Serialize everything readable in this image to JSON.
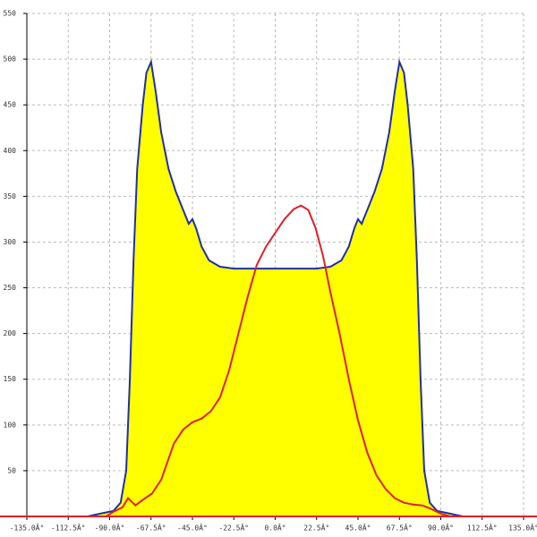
{
  "chart_data": {
    "type": "line",
    "xlim": [
      -135,
      135
    ],
    "ylim": [
      0,
      550
    ],
    "xticks": [
      {
        "value": -135,
        "label": "-135.0Â°"
      },
      {
        "value": -112.5,
        "label": "-112.5Â°"
      },
      {
        "value": -90,
        "label": "-90.0Â°"
      },
      {
        "value": -67.5,
        "label": "-67.5Â°"
      },
      {
        "value": -45,
        "label": "-45.0Â°"
      },
      {
        "value": -22.5,
        "label": "-22.5Â°"
      },
      {
        "value": 0,
        "label": "0.0Â°"
      },
      {
        "value": 22.5,
        "label": "22.5Â°"
      },
      {
        "value": 45,
        "label": "45.0Â°"
      },
      {
        "value": 67.5,
        "label": "67.5Â°"
      },
      {
        "value": 90,
        "label": "90.0Â°"
      },
      {
        "value": 112.5,
        "label": "112.5Â°"
      },
      {
        "value": 135,
        "label": "135.0Â°"
      }
    ],
    "yticks": [
      50,
      100,
      150,
      200,
      250,
      300,
      350,
      400,
      450,
      500,
      550
    ],
    "grid": true,
    "series": [
      {
        "color": "#1f2fa8",
        "fill": "#ffff00",
        "x": [
          -102,
          -95,
          -88,
          -84,
          -81,
          -79,
          -77,
          -75,
          -72,
          -70,
          -67.5,
          -65,
          -62,
          -58,
          -54,
          -50,
          -47,
          -45,
          -43,
          -40,
          -36,
          -30,
          -22.5,
          -15,
          0,
          15,
          22.5,
          30,
          36,
          40,
          43,
          45,
          47,
          50,
          54,
          58,
          62,
          65,
          67.5,
          70,
          72,
          75,
          77,
          79,
          81,
          84,
          88,
          95,
          102
        ],
        "values": [
          0,
          3,
          6,
          15,
          50,
          150,
          280,
          380,
          450,
          485,
          497,
          465,
          420,
          380,
          355,
          335,
          320,
          325,
          315,
          295,
          280,
          273,
          271,
          271,
          271,
          271,
          271,
          273,
          280,
          295,
          315,
          325,
          320,
          335,
          355,
          380,
          420,
          465,
          497,
          485,
          450,
          380,
          280,
          150,
          50,
          15,
          6,
          3,
          0
        ]
      },
      {
        "color": "#e0202a",
        "x": [
          -92,
          -88,
          -83,
          -80,
          -76,
          -72,
          -67,
          -62,
          -55,
          -50,
          -45,
          -40,
          -35,
          -30,
          -25,
          -20,
          -15,
          -10,
          -5,
          0,
          5,
          10,
          14,
          18,
          22,
          26,
          30,
          35,
          40,
          45,
          50,
          55,
          60,
          65,
          70,
          75,
          80,
          85,
          90,
          95
        ],
        "values": [
          0,
          5,
          10,
          20,
          12,
          18,
          25,
          40,
          80,
          95,
          103,
          107,
          115,
          130,
          160,
          200,
          240,
          275,
          295,
          310,
          325,
          336,
          340,
          335,
          315,
          285,
          245,
          200,
          150,
          105,
          70,
          45,
          30,
          20,
          15,
          13,
          12,
          8,
          3,
          0
        ]
      }
    ]
  }
}
